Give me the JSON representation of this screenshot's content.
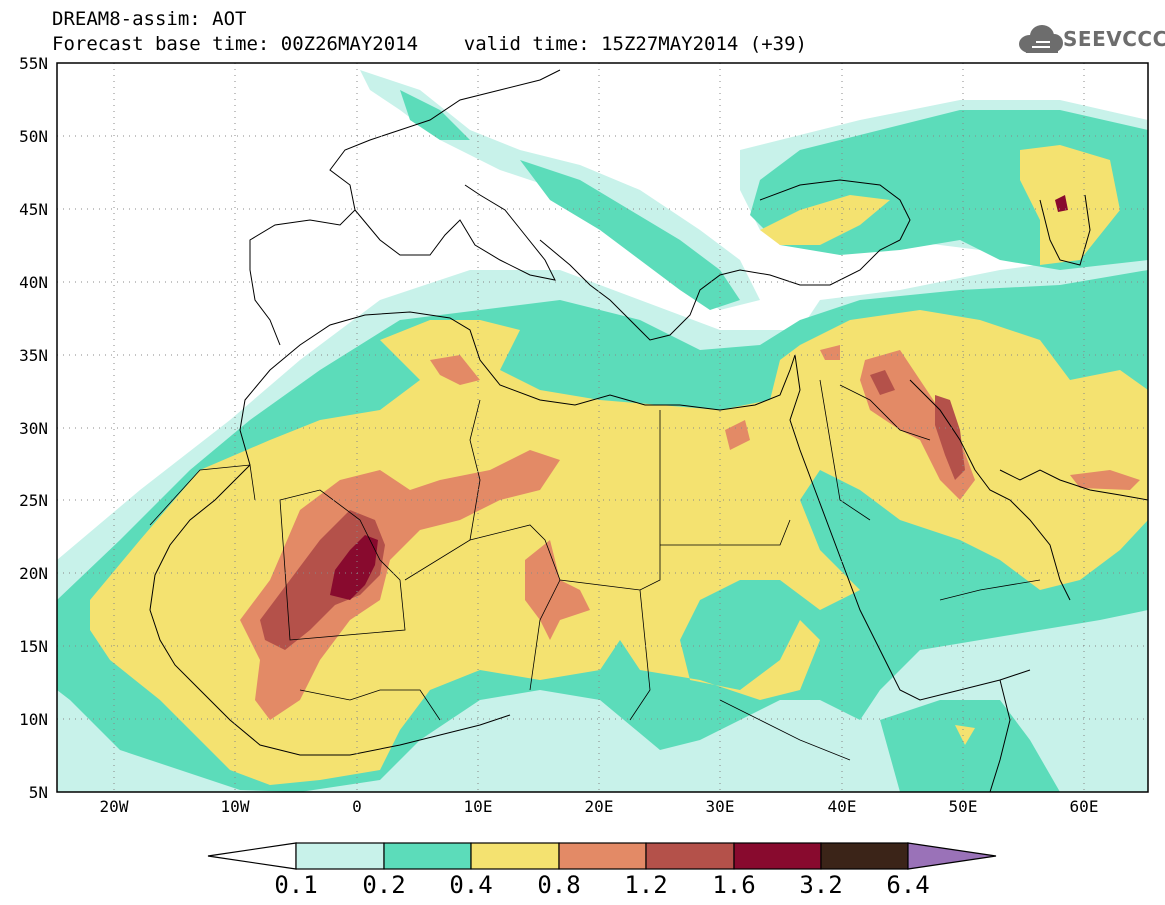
{
  "header": {
    "line1": "DREAM8-assim: AOT",
    "line2": "Forecast base time: 00Z26MAY2014    valid time: 15Z27MAY2014 (+39)"
  },
  "logo": {
    "text": "SEEVCCC",
    "icon": "cloud-icon"
  },
  "map": {
    "lon_ticks": [
      "20W",
      "10W",
      "0",
      "10E",
      "20E",
      "30E",
      "40E",
      "50E",
      "60E"
    ],
    "lat_ticks": [
      "55N",
      "50N",
      "45N",
      "40N",
      "35N",
      "30N",
      "25N",
      "20N",
      "15N",
      "10N",
      "5N"
    ],
    "extent": {
      "lon": [
        -25,
        65
      ],
      "lat": [
        5,
        55
      ]
    },
    "grid": "dotted"
  },
  "colorbar": {
    "labels": [
      "0.1",
      "0.2",
      "0.4",
      "0.8",
      "1.2",
      "1.6",
      "3.2",
      "6.4"
    ],
    "colors": [
      "#c8f2ea",
      "#5cdcba",
      "#f4e270",
      "#e38a66",
      "#b4514a",
      "#880a2e",
      "#3b2418",
      "#9a72b8"
    ],
    "under_color": "#ffffff",
    "over_color": "#9a72b8"
  }
}
